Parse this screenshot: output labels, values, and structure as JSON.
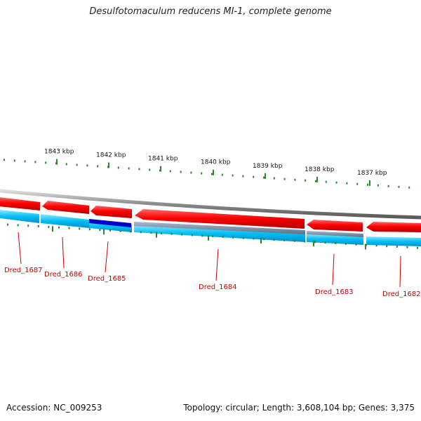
{
  "title": "Desulfotomaculum reducens MI-1, complete genome",
  "footer": {
    "accession": "Accession: NC_009253",
    "summary": "Topology: circular; Length: 3,608,104 bp; Genes: 3,375"
  },
  "colors": {
    "forward_gene": "#ff0000",
    "reverse_track": "#00ccff",
    "highlight_gene": "#0000cc",
    "tick": "#2a8a2a",
    "label_text": "#cc0000",
    "backbone": "#888888"
  },
  "kbp_ticks": [
    "1843 kbp",
    "1842 kbp",
    "1841 kbp",
    "1840 kbp",
    "1839 kbp",
    "1838 kbp",
    "1837 kbp"
  ],
  "genes": [
    {
      "label": "Dred_1687"
    },
    {
      "label": "Dred_1686"
    },
    {
      "label": "Dred_1685"
    },
    {
      "label": "Dred_1684"
    },
    {
      "label": "Dred_1683"
    },
    {
      "label": "Dred_1682"
    }
  ]
}
